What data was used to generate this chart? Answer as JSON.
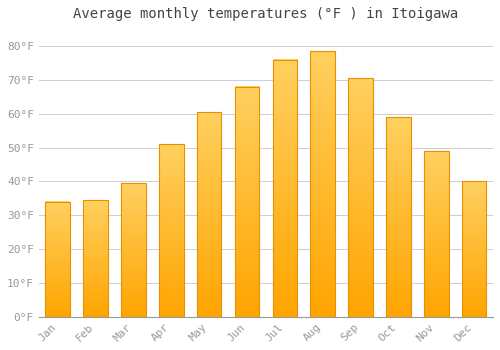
{
  "title": "Average monthly temperatures (°F ) in Itoigawa",
  "months": [
    "Jan",
    "Feb",
    "Mar",
    "Apr",
    "May",
    "Jun",
    "Jul",
    "Aug",
    "Sep",
    "Oct",
    "Nov",
    "Dec"
  ],
  "values": [
    34,
    34.5,
    39.5,
    51,
    60.5,
    68,
    76,
    78.5,
    70.5,
    59,
    49,
    40
  ],
  "bar_color_top": "#FFA500",
  "bar_color_bottom": "#FFD060",
  "bar_edge_color": "#E89000",
  "background_color": "#FFFFFF",
  "grid_color": "#CCCCDD",
  "ylim": [
    0,
    85
  ],
  "yticks": [
    0,
    10,
    20,
    30,
    40,
    50,
    60,
    70,
    80
  ],
  "ytick_labels": [
    "0°F",
    "10°F",
    "20°F",
    "30°F",
    "40°F",
    "50°F",
    "60°F",
    "70°F",
    "80°F"
  ],
  "title_fontsize": 10,
  "tick_fontsize": 8,
  "font_color": "#999999"
}
